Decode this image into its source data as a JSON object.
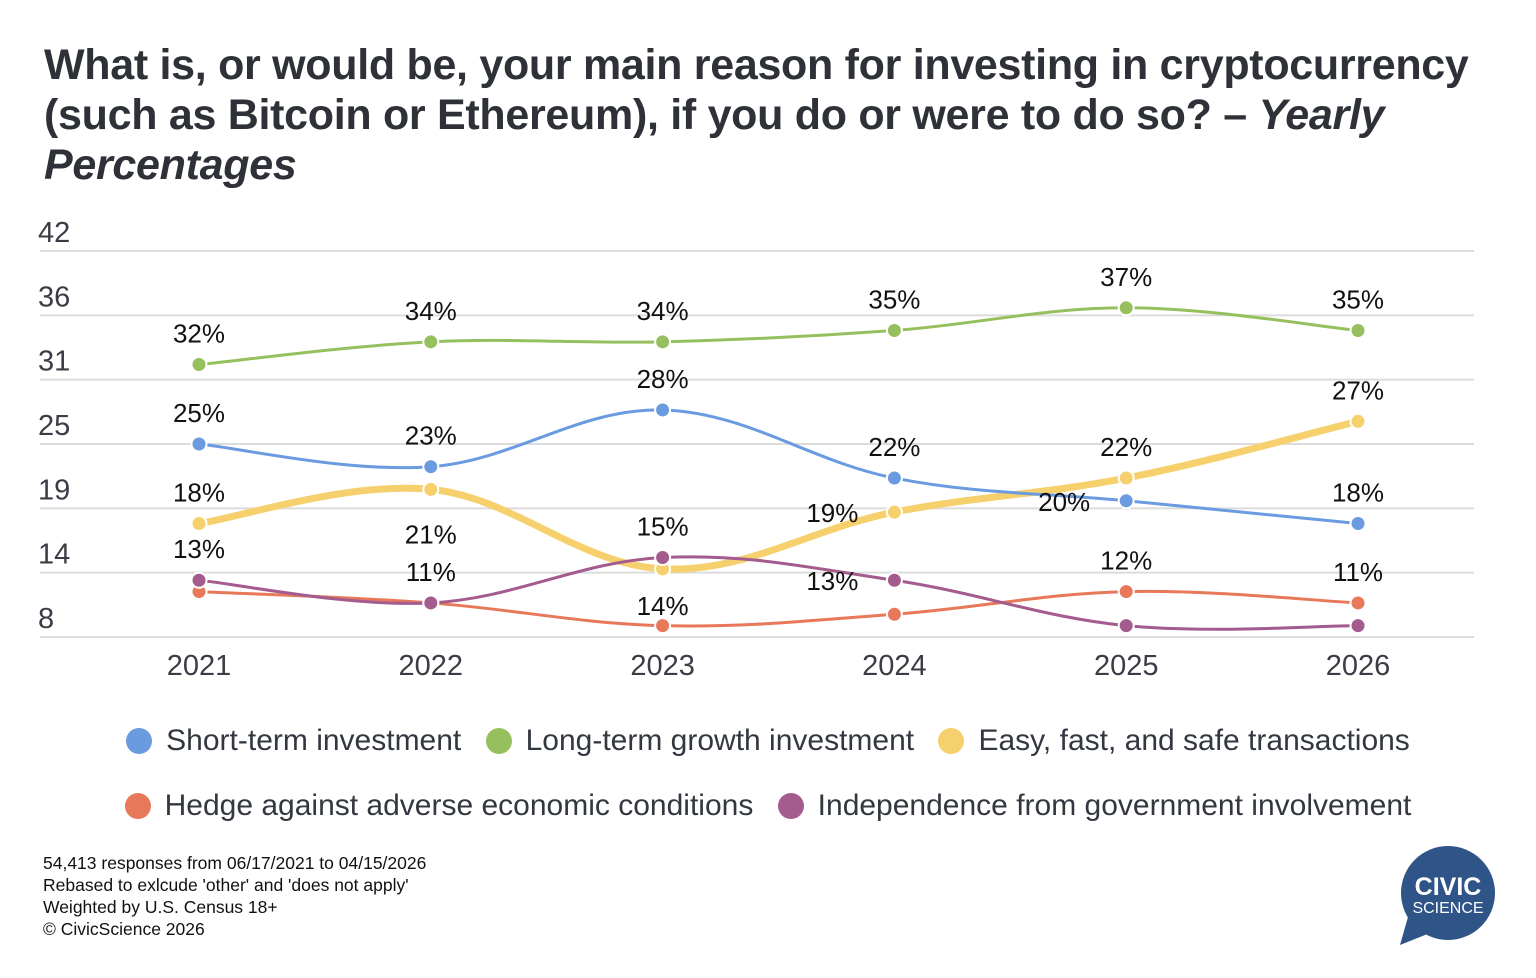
{
  "title": {
    "main": "What is, or would be, your main reason for investing in cryptocurrency (such as Bitcoin or Ethereum), if you do or were to do so? – ",
    "italic": "Yearly Percentages"
  },
  "chart_data": {
    "type": "line",
    "title": "What is, or would be, your main reason for investing in cryptocurrency (such as Bitcoin or Ethereum), if you do or were to do so? – Yearly Percentages",
    "xlabel": "",
    "ylabel": "",
    "x": [
      "2021",
      "2022",
      "2023",
      "2024",
      "2025",
      "2026"
    ],
    "ylim": [
      8,
      42
    ],
    "yticks": [
      "8",
      "14",
      "19",
      "25",
      "31",
      "36",
      "42"
    ],
    "grid": true,
    "legend_position": "bottom",
    "series": [
      {
        "name": "Short-term investment",
        "color": "#6a9be0",
        "values": [
          25,
          23,
          28,
          22,
          20,
          18
        ],
        "labels": [
          "25%",
          "23%",
          "28%",
          "22%",
          "20%",
          "18%"
        ]
      },
      {
        "name": "Long-term growth investment",
        "color": "#96c05e",
        "values": [
          32,
          34,
          34,
          35,
          37,
          35
        ],
        "labels": [
          "32%",
          "34%",
          "34%",
          "35%",
          "37%",
          "35%"
        ]
      },
      {
        "name": "Easy, fast, and safe transactions",
        "color": "#f6d06c",
        "values": [
          18,
          21,
          14,
          19,
          22,
          27
        ],
        "labels": [
          "18%",
          "21%",
          "14%",
          "19%",
          "22%",
          "27%"
        ]
      },
      {
        "name": "Hedge against adverse economic conditions",
        "color": "#e8785a",
        "values": [
          12,
          11,
          9,
          10,
          12,
          11
        ],
        "labels": [
          null,
          null,
          null,
          null,
          "12%",
          "11%"
        ]
      },
      {
        "name": "Independence from government involvement",
        "color": "#a45b8e",
        "values": [
          13,
          11,
          15,
          13,
          9,
          9
        ],
        "labels": [
          "13%",
          "11%",
          "15%",
          "13%",
          null,
          null
        ]
      }
    ]
  },
  "footer": {
    "lines": [
      "54,413 responses from 06/17/2021 to 04/15/2026",
      "Rebased to exlcude 'other' and 'does not apply'",
      "Weighted by U.S. Census 18+",
      "© CivicScience 2026"
    ]
  },
  "logo": {
    "line1": "CIVIC",
    "line2": "SCIENCE",
    "color": "#2e5488"
  }
}
